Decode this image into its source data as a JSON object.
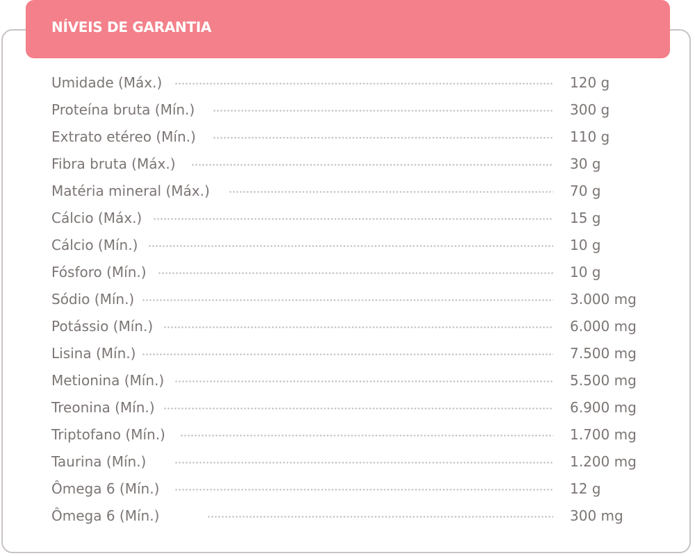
{
  "header": {
    "title": "NÍVEIS DE GARANTIA"
  },
  "colors": {
    "accent": "#f3808a",
    "border": "#c9c4c3",
    "text": "#7b7573",
    "dots": "#c6c0bf"
  },
  "rows": [
    {
      "label": "Umidade (Máx.)",
      "value": "120 g"
    },
    {
      "label": "Proteína bruta (Mín.)",
      "value": "300 g"
    },
    {
      "label": "Extrato etéreo (Mín.)",
      "value": "110 g"
    },
    {
      "label": "Fibra bruta (Máx.)",
      "value": "30 g"
    },
    {
      "label": "Matéria mineral (Máx.)",
      "value": "70 g"
    },
    {
      "label": "Cálcio (Máx.)",
      "value": "15 g"
    },
    {
      "label": "Cálcio (Mín.)",
      "value": "10 g"
    },
    {
      "label": "Fósforo (Mín.)",
      "value": "10 g"
    },
    {
      "label": "Sódio (Mín.)",
      "value": "3.000 mg"
    },
    {
      "label": "Potássio (Mín.)",
      "value": "6.000 mg"
    },
    {
      "label": "Lisina (Mín.)",
      "value": "7.500 mg"
    },
    {
      "label": "Metionina (Mín.)",
      "value": "5.500 mg"
    },
    {
      "label": "Treonina (Mín.)",
      "value": "6.900 mg"
    },
    {
      "label": "Triptofano (Mín.)",
      "value": "1.700 mg"
    },
    {
      "label": "Taurina (Mín.)",
      "value": "1.200 mg"
    },
    {
      "label": "Ômega 6 (Mín.)",
      "value": "12 g"
    },
    {
      "label": "Ômega 6 (Mín.)",
      "value": "300 mg"
    }
  ]
}
